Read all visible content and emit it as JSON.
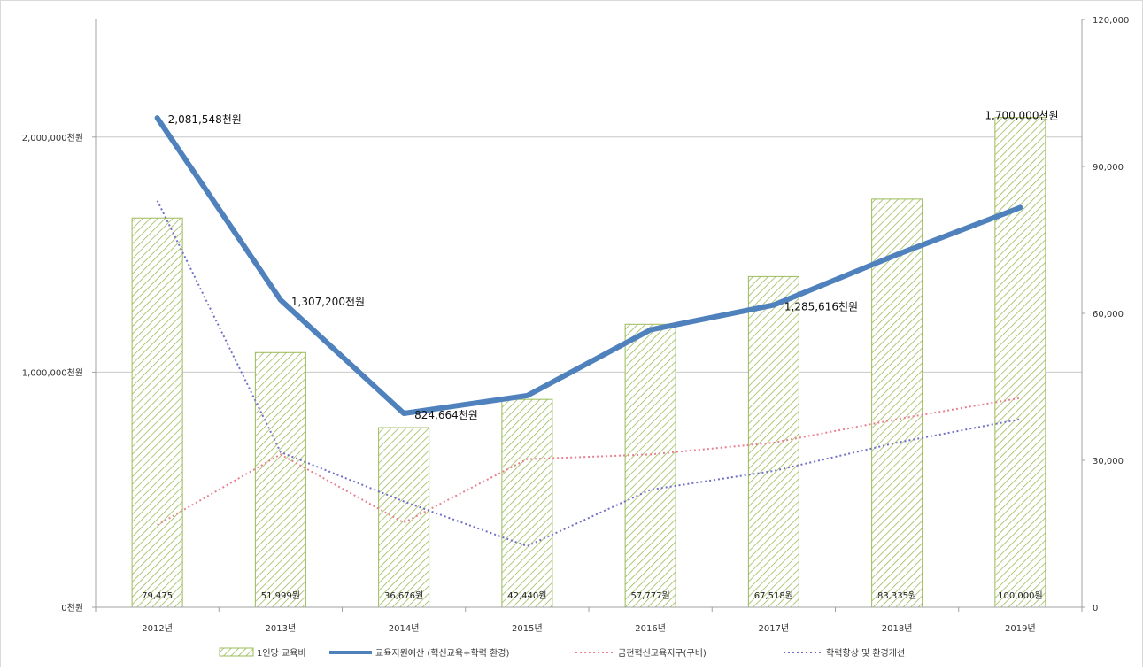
{
  "chart_data": {
    "type": "bar",
    "categories": [
      "2012년",
      "2013년",
      "2014년",
      "2015년",
      "2016년",
      "2017년",
      "2018년",
      "2019년"
    ],
    "left_axis": {
      "ticks": [
        {
          "value": 0,
          "label": "0천원"
        },
        {
          "value": 1000000,
          "label": "1,000,000천원"
        },
        {
          "value": 2000000,
          "label": "2,000,000천원"
        }
      ],
      "ylim": [
        0,
        2500000
      ]
    },
    "right_axis": {
      "ticks": [
        {
          "value": 0,
          "label": "0"
        },
        {
          "value": 30000,
          "label": "30,000"
        },
        {
          "value": 60000,
          "label": "60,000"
        },
        {
          "value": 90000,
          "label": "90,000"
        },
        {
          "value": 120000,
          "label": "120,000"
        }
      ],
      "ylim": [
        0,
        120000
      ]
    },
    "gridlines": true,
    "series": [
      {
        "name": "1인당 교육비",
        "kind": "bar",
        "axis": "right",
        "color": "#9bbb59",
        "values": [
          79475,
          51999,
          36676,
          42440,
          57777,
          67518,
          83335,
          100000
        ],
        "labels": [
          "79,475",
          "51,999원",
          "36,676원",
          "42,440원",
          "57,777원",
          "67,518원",
          "83,335원",
          "100,000원"
        ]
      },
      {
        "name": "교육지원예산 (혁신교육+학력 환경)",
        "kind": "line",
        "axis": "left",
        "color": "#4f81bd",
        "values": [
          2081548,
          1307200,
          824664,
          900000,
          1180000,
          1285616,
          1500000,
          1700000
        ],
        "labels": [
          "2,081,548천원",
          "1,307,200천원",
          "824,664천원",
          "",
          "",
          "1,285,616천원",
          "",
          "1,700,000천원"
        ]
      },
      {
        "name": "금천혁신교육지구(구비)",
        "kind": "line-dotted",
        "axis": "left",
        "color": "#e8808f",
        "values": [
          350000,
          650000,
          360000,
          630000,
          650000,
          700000,
          800000,
          890000
        ]
      },
      {
        "name": "학력향상 및 환경개선",
        "kind": "line-dotted",
        "axis": "left",
        "color": "#7070c8",
        "values": [
          1730000,
          660000,
          450000,
          260000,
          500000,
          580000,
          700000,
          800000
        ]
      }
    ],
    "legend_position": "bottom"
  }
}
